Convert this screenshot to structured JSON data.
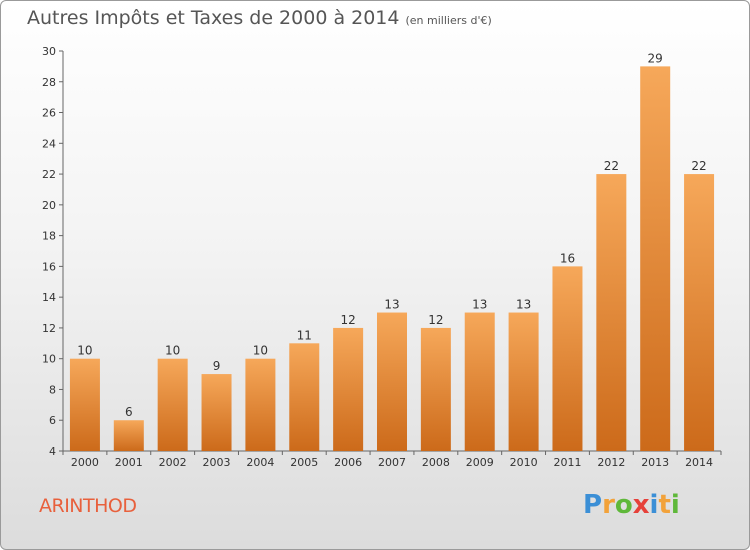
{
  "title": {
    "main": "Autres Impôts et Taxes de 2000 à 2014",
    "unit": "(en milliers d'€)"
  },
  "commune": "ARINTHOD",
  "logo": {
    "letters": [
      {
        "char": "P",
        "color": "#3b8fd6"
      },
      {
        "char": "r",
        "color": "#f2a23a"
      },
      {
        "char": "o",
        "color": "#5fb83a"
      },
      {
        "char": "x",
        "color": "#e6413a"
      },
      {
        "char": "i",
        "color": "#3b8fd6"
      },
      {
        "char": "t",
        "color": "#f2a23a"
      },
      {
        "char": "i",
        "color": "#5fb83a"
      }
    ]
  },
  "colors": {
    "bar_top": "#f6a85a",
    "bar_bottom": "#cc6a1a",
    "axis": "#666666",
    "text": "#333333"
  },
  "chart_data": {
    "type": "bar",
    "title": "Autres Impôts et Taxes de 2000 à 2014",
    "categories": [
      "2000",
      "2001",
      "2002",
      "2003",
      "2004",
      "2005",
      "2006",
      "2007",
      "2008",
      "2009",
      "2010",
      "2011",
      "2012",
      "2013",
      "2014"
    ],
    "values": [
      10,
      6,
      10,
      9,
      10,
      11,
      12,
      13,
      12,
      13,
      13,
      16,
      22,
      29,
      22
    ],
    "ylim": [
      4,
      30
    ],
    "yticks": [
      4,
      6,
      8,
      10,
      12,
      14,
      16,
      18,
      20,
      22,
      24,
      26,
      28,
      30
    ],
    "grid": false,
    "data_labels": true,
    "xlabel": "",
    "ylabel": ""
  }
}
